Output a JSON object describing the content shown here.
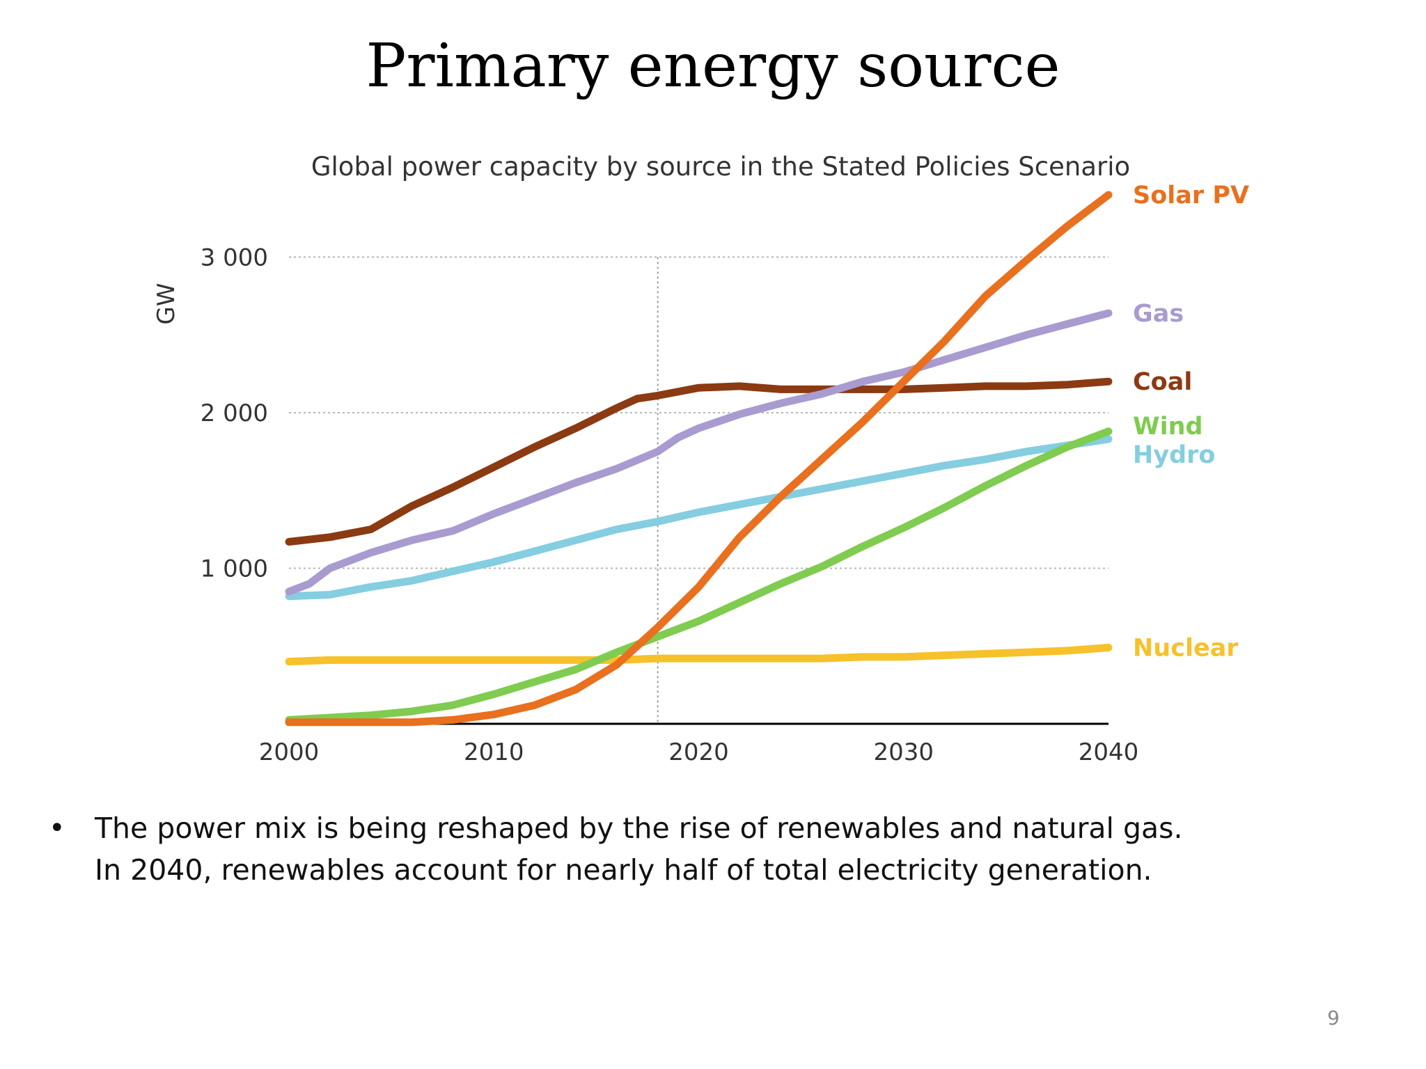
{
  "slide": {
    "title": "Primary energy source",
    "bullet_marker": "•",
    "bullet_lines": [
      "The power mix is being reshaped by the rise of renewables and natural gas.",
      "In 2040, renewables account for nearly half of total electricity generation."
    ],
    "page_number": "9"
  },
  "chart_data": {
    "type": "line",
    "title": "Global power capacity by source in the Stated Policies Scenario",
    "xlabel": "",
    "ylabel": "GW",
    "xlim": [
      2000,
      2040
    ],
    "ylim": [
      0,
      3000
    ],
    "x_ticks": [
      2000,
      2010,
      2020,
      2030,
      2040
    ],
    "y_ticks": [
      1000,
      2000,
      3000
    ],
    "y_tick_labels": [
      "1 000",
      "2 000",
      "3 000"
    ],
    "grid": "dotted horizontal at 1 000, 2 000, 3 000",
    "reference_line_x": 2018,
    "legend_placement": "inline labels at right end of lines",
    "series": [
      {
        "name": "Solar PV",
        "color": "#e8701e",
        "x": [
          2000,
          2004,
          2006,
          2008,
          2010,
          2012,
          2014,
          2016,
          2018,
          2020,
          2022,
          2024,
          2026,
          2028,
          2030,
          2032,
          2034,
          2036,
          2038,
          2040
        ],
        "values": [
          10,
          10,
          10,
          25,
          60,
          120,
          220,
          380,
          620,
          880,
          1200,
          1460,
          1700,
          1940,
          2200,
          2460,
          2750,
          2980,
          3200,
          3400
        ]
      },
      {
        "name": "Gas",
        "color": "#a99bd0",
        "x": [
          2000,
          2001,
          2002,
          2004,
          2006,
          2008,
          2010,
          2012,
          2014,
          2016,
          2018,
          2019,
          2020,
          2022,
          2024,
          2026,
          2028,
          2030,
          2032,
          2034,
          2036,
          2038,
          2040
        ],
        "values": [
          850,
          900,
          1000,
          1100,
          1180,
          1240,
          1350,
          1450,
          1550,
          1640,
          1750,
          1840,
          1900,
          1990,
          2060,
          2120,
          2200,
          2260,
          2340,
          2420,
          2500,
          2570,
          2640
        ]
      },
      {
        "name": "Coal",
        "color": "#8b3a12",
        "x": [
          2000,
          2002,
          2004,
          2006,
          2008,
          2010,
          2012,
          2014,
          2016,
          2017,
          2018,
          2020,
          2022,
          2024,
          2026,
          2028,
          2030,
          2032,
          2034,
          2036,
          2038,
          2040
        ],
        "values": [
          1170,
          1200,
          1250,
          1400,
          1520,
          1650,
          1780,
          1900,
          2030,
          2090,
          2110,
          2160,
          2170,
          2150,
          2150,
          2150,
          2150,
          2160,
          2170,
          2170,
          2180,
          2200
        ]
      },
      {
        "name": "Wind",
        "color": "#7fcc50",
        "x": [
          2000,
          2002,
          2004,
          2006,
          2008,
          2010,
          2012,
          2014,
          2016,
          2018,
          2020,
          2022,
          2024,
          2026,
          2028,
          2030,
          2032,
          2034,
          2036,
          2038,
          2040
        ],
        "values": [
          25,
          40,
          55,
          80,
          120,
          190,
          270,
          350,
          460,
          560,
          660,
          780,
          900,
          1010,
          1140,
          1260,
          1390,
          1530,
          1660,
          1780,
          1880
        ]
      },
      {
        "name": "Hydro",
        "color": "#85cde0",
        "x": [
          2000,
          2002,
          2004,
          2006,
          2008,
          2010,
          2012,
          2014,
          2016,
          2018,
          2020,
          2022,
          2024,
          2026,
          2028,
          2030,
          2032,
          2034,
          2036,
          2038,
          2040
        ],
        "values": [
          820,
          830,
          880,
          920,
          980,
          1040,
          1110,
          1180,
          1250,
          1300,
          1360,
          1410,
          1460,
          1510,
          1560,
          1610,
          1660,
          1700,
          1750,
          1790,
          1830
        ]
      },
      {
        "name": "Nuclear",
        "color": "#f7c12b",
        "x": [
          2000,
          2002,
          2004,
          2006,
          2008,
          2010,
          2012,
          2014,
          2016,
          2018,
          2020,
          2022,
          2024,
          2026,
          2028,
          2030,
          2032,
          2034,
          2036,
          2038,
          2040
        ],
        "values": [
          400,
          410,
          410,
          410,
          410,
          410,
          410,
          410,
          410,
          420,
          420,
          420,
          420,
          420,
          430,
          430,
          440,
          450,
          460,
          470,
          490
        ]
      }
    ]
  }
}
